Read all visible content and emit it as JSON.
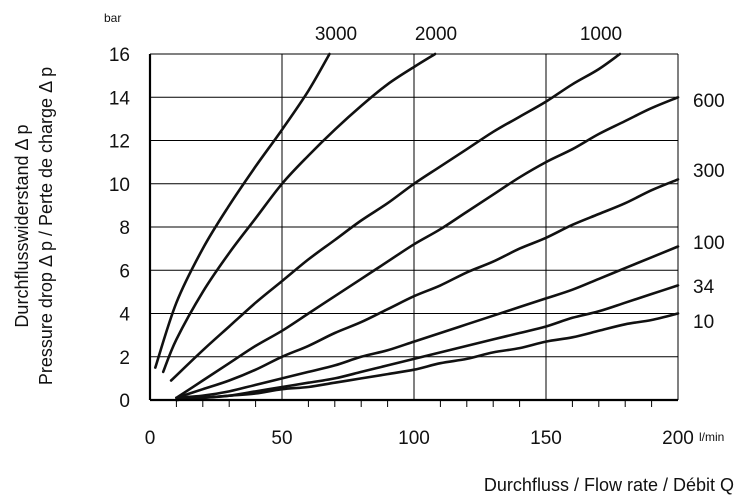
{
  "chart_data": {
    "type": "line",
    "xlabel": "Durchfluss / Flow rate / Débit Q",
    "ylabel_lines": [
      "Durchflusswiderstand Δ p",
      "Pressure drop Δ p / Perte de charge Δ p"
    ],
    "x_unit": "l/min",
    "y_unit": "bar",
    "xlim": [
      0,
      200
    ],
    "ylim": [
      0,
      16
    ],
    "x_ticks": [
      "0",
      "50",
      "100",
      "150",
      "200"
    ],
    "y_ticks": [
      "0",
      "2",
      "4",
      "6",
      "8",
      "10",
      "12",
      "14",
      "16"
    ],
    "grid": true,
    "series": [
      {
        "name": "3000",
        "points": [
          [
            2,
            1.5
          ],
          [
            10,
            4.5
          ],
          [
            20,
            7.0
          ],
          [
            30,
            9.0
          ],
          [
            40,
            10.8
          ],
          [
            50,
            12.5
          ],
          [
            60,
            14.3
          ],
          [
            68,
            16.0
          ]
        ]
      },
      {
        "name": "2000",
        "points": [
          [
            5,
            1.3
          ],
          [
            10,
            2.8
          ],
          [
            20,
            5.0
          ],
          [
            30,
            6.8
          ],
          [
            40,
            8.4
          ],
          [
            50,
            10.0
          ],
          [
            60,
            11.3
          ],
          [
            70,
            12.5
          ],
          [
            80,
            13.6
          ],
          [
            90,
            14.6
          ],
          [
            100,
            15.4
          ],
          [
            108,
            16.0
          ]
        ]
      },
      {
        "name": "1000",
        "points": [
          [
            8,
            0.9
          ],
          [
            20,
            2.3
          ],
          [
            30,
            3.4
          ],
          [
            40,
            4.5
          ],
          [
            50,
            5.5
          ],
          [
            60,
            6.5
          ],
          [
            70,
            7.4
          ],
          [
            80,
            8.3
          ],
          [
            90,
            9.1
          ],
          [
            100,
            10.0
          ],
          [
            110,
            10.8
          ],
          [
            120,
            11.6
          ],
          [
            130,
            12.4
          ],
          [
            140,
            13.1
          ],
          [
            150,
            13.8
          ],
          [
            160,
            14.6
          ],
          [
            170,
            15.3
          ],
          [
            178,
            16.0
          ]
        ]
      },
      {
        "name": "600",
        "points": [
          [
            10,
            0.1
          ],
          [
            20,
            0.9
          ],
          [
            30,
            1.7
          ],
          [
            40,
            2.5
          ],
          [
            50,
            3.2
          ],
          [
            60,
            4.0
          ],
          [
            70,
            4.8
          ],
          [
            80,
            5.6
          ],
          [
            90,
            6.4
          ],
          [
            100,
            7.2
          ],
          [
            110,
            7.9
          ],
          [
            120,
            8.7
          ],
          [
            130,
            9.5
          ],
          [
            140,
            10.3
          ],
          [
            150,
            11.0
          ],
          [
            160,
            11.6
          ],
          [
            170,
            12.3
          ],
          [
            180,
            12.9
          ],
          [
            190,
            13.5
          ],
          [
            200,
            14.0
          ]
        ]
      },
      {
        "name": "300",
        "points": [
          [
            10,
            0.1
          ],
          [
            20,
            0.5
          ],
          [
            30,
            0.9
          ],
          [
            40,
            1.4
          ],
          [
            50,
            2.0
          ],
          [
            60,
            2.5
          ],
          [
            70,
            3.1
          ],
          [
            80,
            3.6
          ],
          [
            90,
            4.2
          ],
          [
            100,
            4.8
          ],
          [
            110,
            5.3
          ],
          [
            120,
            5.9
          ],
          [
            130,
            6.4
          ],
          [
            140,
            7.0
          ],
          [
            150,
            7.5
          ],
          [
            160,
            8.1
          ],
          [
            170,
            8.6
          ],
          [
            180,
            9.1
          ],
          [
            190,
            9.7
          ],
          [
            200,
            10.2
          ]
        ]
      },
      {
        "name": "100",
        "points": [
          [
            10,
            0.1
          ],
          [
            20,
            0.2
          ],
          [
            30,
            0.4
          ],
          [
            40,
            0.7
          ],
          [
            50,
            1.0
          ],
          [
            60,
            1.3
          ],
          [
            70,
            1.6
          ],
          [
            80,
            2.0
          ],
          [
            90,
            2.3
          ],
          [
            100,
            2.7
          ],
          [
            110,
            3.1
          ],
          [
            120,
            3.5
          ],
          [
            130,
            3.9
          ],
          [
            140,
            4.3
          ],
          [
            150,
            4.7
          ],
          [
            160,
            5.1
          ],
          [
            170,
            5.6
          ],
          [
            180,
            6.1
          ],
          [
            190,
            6.6
          ],
          [
            200,
            7.1
          ]
        ]
      },
      {
        "name": "34",
        "points": [
          [
            10,
            0.0
          ],
          [
            20,
            0.1
          ],
          [
            30,
            0.2
          ],
          [
            40,
            0.4
          ],
          [
            50,
            0.6
          ],
          [
            60,
            0.8
          ],
          [
            70,
            1.0
          ],
          [
            80,
            1.3
          ],
          [
            90,
            1.6
          ],
          [
            100,
            1.9
          ],
          [
            110,
            2.2
          ],
          [
            120,
            2.5
          ],
          [
            130,
            2.8
          ],
          [
            140,
            3.1
          ],
          [
            150,
            3.4
          ],
          [
            160,
            3.8
          ],
          [
            170,
            4.1
          ],
          [
            180,
            4.5
          ],
          [
            190,
            4.9
          ],
          [
            200,
            5.3
          ]
        ]
      },
      {
        "name": "10",
        "points": [
          [
            10,
            0.0
          ],
          [
            20,
            0.1
          ],
          [
            30,
            0.2
          ],
          [
            40,
            0.3
          ],
          [
            50,
            0.5
          ],
          [
            60,
            0.6
          ],
          [
            70,
            0.8
          ],
          [
            80,
            1.0
          ],
          [
            90,
            1.2
          ],
          [
            100,
            1.4
          ],
          [
            110,
            1.7
          ],
          [
            120,
            1.9
          ],
          [
            130,
            2.2
          ],
          [
            140,
            2.4
          ],
          [
            150,
            2.7
          ],
          [
            160,
            2.9
          ],
          [
            170,
            3.2
          ],
          [
            180,
            3.5
          ],
          [
            190,
            3.7
          ],
          [
            200,
            4.0
          ]
        ]
      }
    ]
  }
}
